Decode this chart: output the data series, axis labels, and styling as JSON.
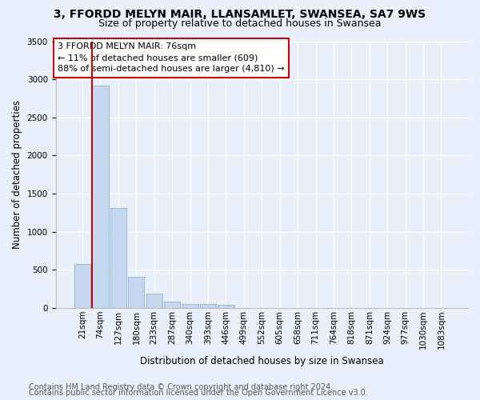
{
  "title": "3, FFORDD MELYN MAIR, LLANSAMLET, SWANSEA, SA7 9WS",
  "subtitle": "Size of property relative to detached houses in Swansea",
  "xlabel": "Distribution of detached houses by size in Swansea",
  "ylabel": "Number of detached properties",
  "categories": [
    "21sqm",
    "74sqm",
    "127sqm",
    "180sqm",
    "233sqm",
    "287sqm",
    "340sqm",
    "393sqm",
    "446sqm",
    "499sqm",
    "552sqm",
    "605sqm",
    "658sqm",
    "711sqm",
    "764sqm",
    "818sqm",
    "871sqm",
    "924sqm",
    "977sqm",
    "1030sqm",
    "1083sqm"
  ],
  "values": [
    570,
    2920,
    1310,
    410,
    185,
    80,
    50,
    45,
    38,
    0,
    0,
    0,
    0,
    0,
    0,
    0,
    0,
    0,
    0,
    0,
    0
  ],
  "bar_color": "#c5d8f0",
  "bar_edge_color": "#8ab4d8",
  "vline_color": "#cc0000",
  "annotation_text": "3 FFORDD MELYN MAIR: 76sqm\n← 11% of detached houses are smaller (609)\n88% of semi-detached houses are larger (4,810) →",
  "annotation_box_facecolor": "#ffffff",
  "annotation_box_edgecolor": "#cc0000",
  "ylim": [
    0,
    3500
  ],
  "yticks": [
    0,
    500,
    1000,
    1500,
    2000,
    2500,
    3000,
    3500
  ],
  "footer_line1": "Contains HM Land Registry data © Crown copyright and database right 2024.",
  "footer_line2": "Contains public sector information licensed under the Open Government Licence v3.0.",
  "bg_color": "#eaf0fb",
  "plot_bg_color": "#eaf0fb",
  "title_fontsize": 10,
  "subtitle_fontsize": 9,
  "axis_label_fontsize": 8.5,
  "tick_fontsize": 7.5,
  "footer_fontsize": 7
}
